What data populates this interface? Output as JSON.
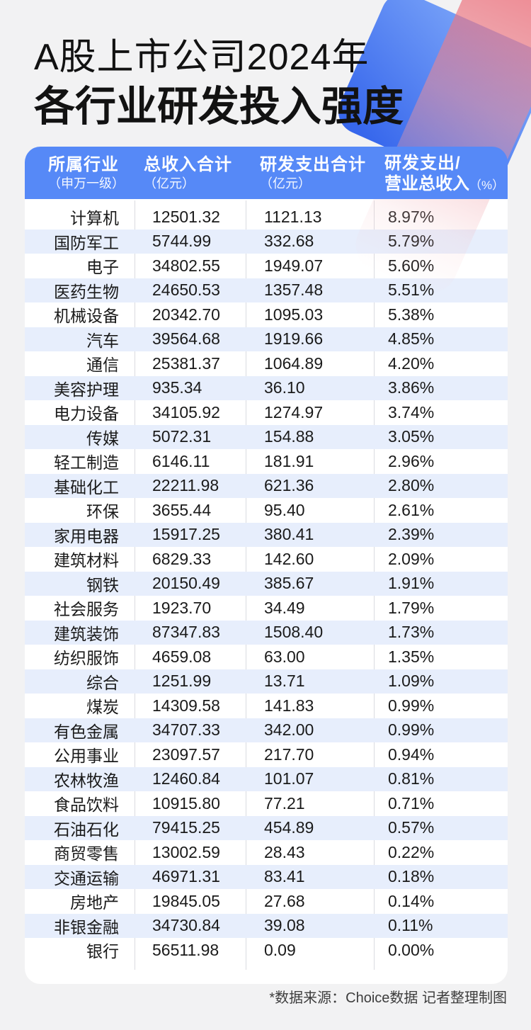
{
  "title": {
    "line1": "A股上市公司2024年",
    "line2": "各行业研发投入强度"
  },
  "table_header": {
    "col1_line1": "所属行业",
    "col1_line2": "（申万一级）",
    "col2_line1": "总收入合计",
    "col2_line2": "（亿元）",
    "col3_line1": "研发支出合计",
    "col3_line2": "（亿元）",
    "col4_line1": "研发支出/",
    "col4_line2": "营业总收入",
    "col4_unit": "（%）"
  },
  "chart_data": {
    "type": "table",
    "title": "A股上市公司2024年各行业研发投入强度",
    "columns": [
      "所属行业（申万一级）",
      "总收入合计（亿元）",
      "研发支出合计（亿元）",
      "研发支出/营业总收入（%）"
    ],
    "rows": [
      [
        "计算机",
        "12501.32",
        "1121.13",
        "8.97%"
      ],
      [
        "国防军工",
        "5744.99",
        "332.68",
        "5.79%"
      ],
      [
        "电子",
        "34802.55",
        "1949.07",
        "5.60%"
      ],
      [
        "医药生物",
        "24650.53",
        "1357.48",
        "5.51%"
      ],
      [
        "机械设备",
        "20342.70",
        "1095.03",
        "5.38%"
      ],
      [
        "汽车",
        "39564.68",
        "1919.66",
        "4.85%"
      ],
      [
        "通信",
        "25381.37",
        "1064.89",
        "4.20%"
      ],
      [
        "美容护理",
        "935.34",
        "36.10",
        "3.86%"
      ],
      [
        "电力设备",
        "34105.92",
        "1274.97",
        "3.74%"
      ],
      [
        "传媒",
        "5072.31",
        "154.88",
        "3.05%"
      ],
      [
        "轻工制造",
        "6146.11",
        "181.91",
        "2.96%"
      ],
      [
        "基础化工",
        "22211.98",
        "621.36",
        "2.80%"
      ],
      [
        "环保",
        "3655.44",
        "95.40",
        "2.61%"
      ],
      [
        "家用电器",
        "15917.25",
        "380.41",
        "2.39%"
      ],
      [
        "建筑材料",
        "6829.33",
        "142.60",
        "2.09%"
      ],
      [
        "钢铁",
        "20150.49",
        "385.67",
        "1.91%"
      ],
      [
        "社会服务",
        "1923.70",
        "34.49",
        "1.79%"
      ],
      [
        "建筑装饰",
        "87347.83",
        "1508.40",
        "1.73%"
      ],
      [
        "纺织服饰",
        "4659.08",
        "63.00",
        "1.35%"
      ],
      [
        "综合",
        "1251.99",
        "13.71",
        "1.09%"
      ],
      [
        "煤炭",
        "14309.58",
        "141.83",
        "0.99%"
      ],
      [
        "有色金属",
        "34707.33",
        "342.00",
        "0.99%"
      ],
      [
        "公用事业",
        "23097.57",
        "217.70",
        "0.94%"
      ],
      [
        "农林牧渔",
        "12460.84",
        "101.07",
        "0.81%"
      ],
      [
        "食品饮料",
        "10915.80",
        "77.21",
        "0.71%"
      ],
      [
        "石油石化",
        "79415.25",
        "454.89",
        "0.57%"
      ],
      [
        "商贸零售",
        "13002.59",
        "28.43",
        "0.22%"
      ],
      [
        "交通运输",
        "46971.31",
        "83.41",
        "0.18%"
      ],
      [
        "房地产",
        "19845.05",
        "27.68",
        "0.14%"
      ],
      [
        "非银金融",
        "34730.84",
        "39.08",
        "0.11%"
      ],
      [
        "银行",
        "56511.98",
        "0.09",
        "0.00%"
      ]
    ]
  },
  "footer": {
    "note": "*数据来源：Choice数据 记者整理制图"
  },
  "colors": {
    "page_background": "#F2F2F3",
    "header_blue": "#5689F7",
    "row_stripe_blue": "#E7EEFC",
    "accent_blue_gradient": [
      "#82ABFA",
      "#3767EC"
    ],
    "accent_pink": "#EC626E",
    "divider_gray": "#DADBE0"
  }
}
